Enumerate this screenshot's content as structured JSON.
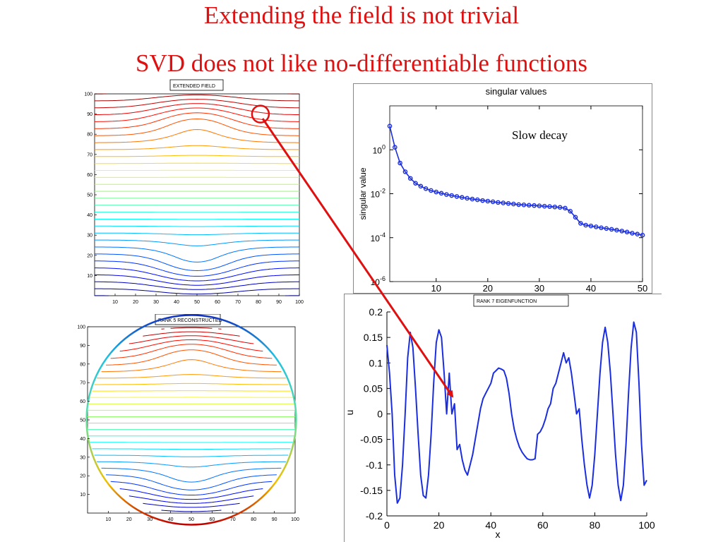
{
  "slide": {
    "title_line1": "Extending the field is not trivial",
    "title_line2": "SVD does not like no-differentiable functions"
  },
  "colors": {
    "title": "#e01010",
    "curve": "#1a2ee0",
    "arrow": "#e01010",
    "contour_scale": "jet"
  },
  "chart_data": [
    {
      "type": "contour",
      "title": "EXTENDED FIELD",
      "xlim": [
        0,
        100
      ],
      "ylim": [
        0,
        100
      ],
      "xticks": [
        10,
        20,
        30,
        40,
        50,
        60,
        70,
        80,
        90,
        100
      ],
      "yticks": [
        10,
        20,
        30,
        40,
        50,
        60,
        70,
        80,
        90,
        100
      ],
      "levels": 30,
      "domain_shape": "square",
      "vortex_centers": [
        [
          50,
          88
        ],
        [
          50,
          13
        ]
      ],
      "annotation": "red circle at (81, 90)"
    },
    {
      "type": "contour",
      "title": "RANK 5 RECONSTRUCTED",
      "xlim": [
        0,
        100
      ],
      "ylim": [
        0,
        100
      ],
      "xticks": [
        10,
        20,
        30,
        40,
        50,
        60,
        70,
        80,
        90,
        100
      ],
      "yticks": [
        10,
        20,
        30,
        40,
        50,
        60,
        70,
        80,
        90,
        100
      ],
      "levels": 30,
      "domain_shape": "disk",
      "vortex_centers": [
        [
          50,
          88
        ],
        [
          50,
          13
        ]
      ]
    },
    {
      "type": "line",
      "title": "singular values",
      "ylabel": "singular value",
      "xlabel": "",
      "yscale": "log",
      "xlim": [
        1,
        50
      ],
      "ylim": [
        1e-06,
        100
      ],
      "xticks": [
        10,
        20,
        30,
        40,
        50
      ],
      "ytick_labels": [
        "10^0",
        "10^-2",
        "10^-4",
        "10^-6"
      ],
      "annotation": "Slow decay",
      "x": [
        1,
        2,
        3,
        4,
        5,
        6,
        7,
        8,
        9,
        10,
        11,
        12,
        13,
        14,
        15,
        16,
        17,
        18,
        19,
        20,
        21,
        22,
        23,
        24,
        25,
        26,
        27,
        28,
        29,
        30,
        31,
        32,
        33,
        34,
        35,
        36,
        37,
        38,
        39,
        40,
        41,
        42,
        43,
        44,
        45,
        46,
        47,
        48,
        49,
        50
      ],
      "y": [
        12,
        1.3,
        0.25,
        0.1,
        0.05,
        0.03,
        0.022,
        0.017,
        0.014,
        0.012,
        0.0105,
        0.0092,
        0.0083,
        0.0075,
        0.0068,
        0.0062,
        0.0057,
        0.0053,
        0.0049,
        0.0046,
        0.0043,
        0.004,
        0.0038,
        0.0036,
        0.0034,
        0.0032,
        0.0031,
        0.003,
        0.0029,
        0.0028,
        0.0027,
        0.0026,
        0.0025,
        0.0024,
        0.0022,
        0.0016,
        0.00085,
        0.00045,
        0.00037,
        0.00034,
        0.00031,
        0.00028,
        0.00026,
        0.00024,
        0.00022,
        0.0002,
        0.00018,
        0.00016,
        0.000145,
        0.00013
      ]
    },
    {
      "type": "line",
      "title": "RANK 7 EIGENFUNCTION",
      "xlabel": "x",
      "ylabel": "u",
      "xlim": [
        0,
        100
      ],
      "ylim": [
        -0.2,
        0.2
      ],
      "xticks": [
        0,
        20,
        40,
        60,
        80,
        100
      ],
      "xtick_labels": [
        "0",
        "20",
        "40",
        "60",
        "80",
        "100"
      ],
      "yticks": [
        -0.2,
        -0.15,
        -0.1,
        -0.05,
        0,
        0.05,
        0.1,
        0.15,
        0.2
      ],
      "ytick_labels": [
        "-0.2",
        "-0.15",
        "-0.1",
        "-0.05",
        "0",
        "0.05",
        "0.1",
        "0.15",
        "0.2"
      ],
      "x": [
        0,
        1,
        2,
        3,
        4,
        5,
        6,
        7,
        8,
        9,
        10,
        11,
        12,
        13,
        14,
        15,
        16,
        17,
        18,
        19,
        20,
        21,
        22,
        23,
        24,
        25,
        26,
        27,
        28,
        29,
        30,
        31,
        32,
        33,
        34,
        35,
        36,
        37,
        38,
        39,
        40,
        41,
        42,
        43,
        44,
        45,
        46,
        47,
        48,
        49,
        50,
        51,
        52,
        53,
        54,
        55,
        56,
        57,
        58,
        59,
        60,
        61,
        62,
        63,
        64,
        65,
        66,
        67,
        68,
        69,
        70,
        71,
        72,
        73,
        74,
        75,
        76,
        77,
        78,
        79,
        80,
        81,
        82,
        83,
        84,
        85,
        86,
        87,
        88,
        89,
        90,
        91,
        92,
        93,
        94,
        95,
        96,
        97,
        98,
        99,
        100
      ],
      "y": [
        0.135,
        0.08,
        0.0,
        -0.12,
        -0.175,
        -0.165,
        -0.1,
        0.0,
        0.11,
        0.16,
        0.13,
        0.05,
        -0.04,
        -0.12,
        -0.16,
        -0.165,
        -0.12,
        -0.04,
        0.06,
        0.14,
        0.165,
        0.15,
        0.08,
        0.0,
        0.08,
        0.0,
        0.02,
        -0.07,
        -0.06,
        -0.09,
        -0.11,
        -0.12,
        -0.1,
        -0.08,
        -0.05,
        -0.02,
        0.01,
        0.03,
        0.04,
        0.05,
        0.06,
        0.08,
        0.085,
        0.09,
        0.088,
        0.085,
        0.07,
        0.04,
        0.0,
        -0.03,
        -0.05,
        -0.065,
        -0.075,
        -0.082,
        -0.088,
        -0.09,
        -0.09,
        -0.088,
        -0.04,
        -0.035,
        -0.025,
        -0.01,
        0.01,
        0.02,
        0.05,
        0.06,
        0.08,
        0.1,
        0.12,
        0.1,
        0.11,
        0.08,
        0.04,
        0.0,
        0.01,
        -0.05,
        -0.1,
        -0.14,
        -0.165,
        -0.14,
        -0.08,
        0.0,
        0.08,
        0.14,
        0.17,
        0.14,
        0.08,
        0.0,
        -0.08,
        -0.14,
        -0.17,
        -0.14,
        -0.06,
        0.04,
        0.13,
        0.18,
        0.16,
        0.06,
        -0.06,
        -0.14,
        -0.13
      ]
    }
  ]
}
